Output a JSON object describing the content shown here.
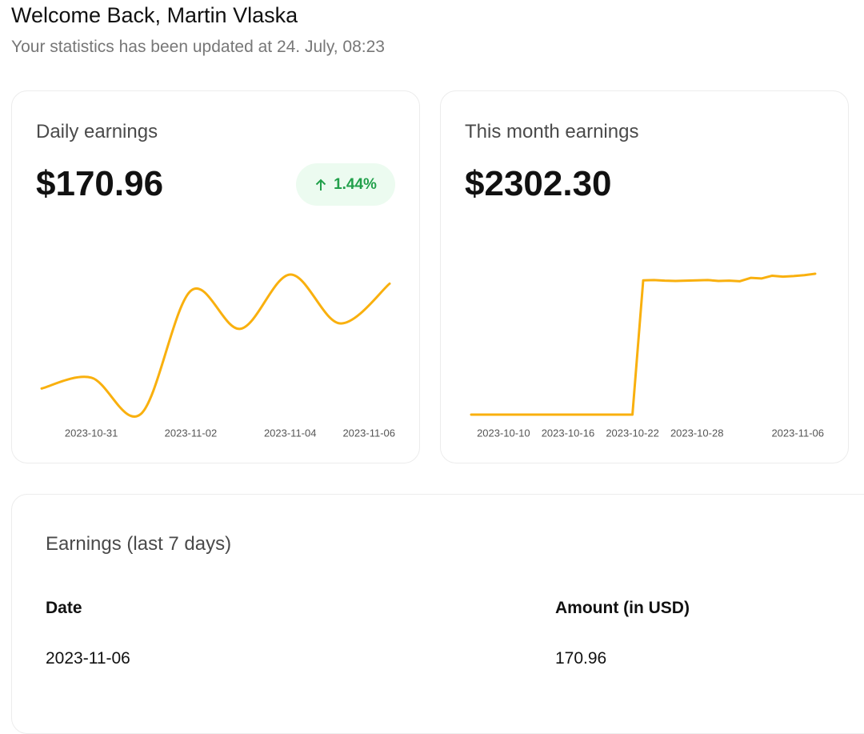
{
  "header": {
    "title": "Welcome Back, Martin Vlaska",
    "subtitle": "Your statistics has been updated at 24. July, 08:23"
  },
  "cards": [
    {
      "title": "Daily earnings",
      "amount": "$170.96",
      "change": "1.44%"
    },
    {
      "title": "This month earnings",
      "amount": "$2302.30"
    }
  ],
  "chart_data": [
    {
      "type": "line",
      "smooth": true,
      "color": "#f9b00e",
      "x": [
        "2023-10-30",
        "2023-10-31",
        "2023-11-01",
        "2023-11-02",
        "2023-11-03",
        "2023-11-04",
        "2023-11-05",
        "2023-11-06"
      ],
      "values": [
        113,
        119,
        99,
        167,
        146,
        176,
        149,
        170.96
      ],
      "xticks": [
        "2023-10-31",
        "2023-11-02",
        "2023-11-04",
        "2023-11-06"
      ]
    },
    {
      "type": "line",
      "smooth": false,
      "color": "#f9b00e",
      "x": [
        "2023-10-07",
        "2023-10-08",
        "2023-10-09",
        "2023-10-10",
        "2023-10-11",
        "2023-10-12",
        "2023-10-13",
        "2023-10-14",
        "2023-10-15",
        "2023-10-16",
        "2023-10-17",
        "2023-10-18",
        "2023-10-19",
        "2023-10-20",
        "2023-10-21",
        "2023-10-22",
        "2023-10-23",
        "2023-10-24",
        "2023-10-25",
        "2023-10-26",
        "2023-10-27",
        "2023-10-28",
        "2023-10-29",
        "2023-10-30",
        "2023-10-31",
        "2023-11-01",
        "2023-11-02",
        "2023-11-03",
        "2023-11-04",
        "2023-11-05",
        "2023-11-06",
        "2023-11-07",
        "2023-11-08"
      ],
      "values": [
        0,
        0,
        0,
        0,
        0,
        0,
        0,
        0,
        0,
        0,
        0,
        0,
        0,
        0,
        0,
        0,
        2195,
        2200,
        2190,
        2185,
        2190,
        2195,
        2200,
        2185,
        2190,
        2180,
        2235,
        2225,
        2270,
        2255,
        2265,
        2280,
        2302.3
      ],
      "xticks": [
        "2023-10-10",
        "2023-10-16",
        "2023-10-22",
        "2023-10-28",
        "2023-11-06"
      ]
    }
  ],
  "table": {
    "title": "Earnings (last 7 days)",
    "columns": [
      "Date",
      "Amount (in USD)"
    ],
    "rows": [
      [
        "2023-11-06",
        "170.96"
      ]
    ]
  }
}
